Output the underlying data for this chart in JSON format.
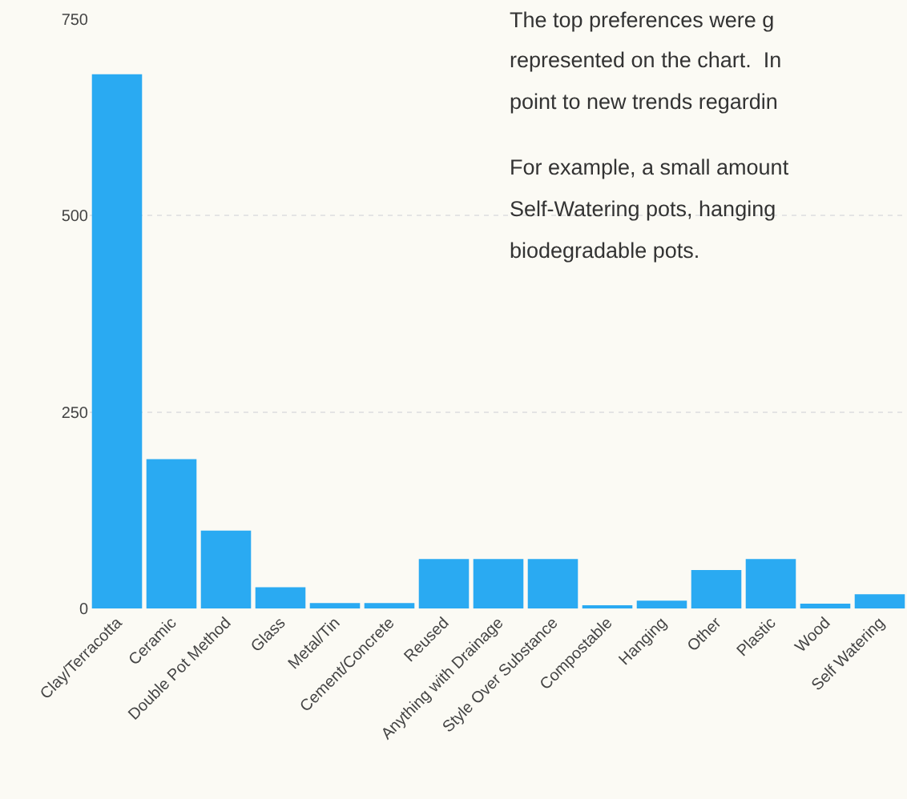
{
  "chart_data": {
    "type": "bar",
    "categories": [
      "Clay/Terracotta",
      "Ceramic",
      "Double Pot Method",
      "Glass",
      "Metal/Tin",
      "Cement/Concrete",
      "Reused",
      "Anything with Drainage",
      "Style Over Substance",
      "Compostable",
      "Hanging",
      "Other",
      "Plastic",
      "Wood",
      "Self Watering"
    ],
    "values": [
      680,
      190,
      99,
      27,
      7,
      7,
      63,
      63,
      63,
      3,
      10,
      49,
      63,
      6,
      18
    ],
    "color": "#2aaaf2",
    "ylim": [
      0,
      750
    ],
    "yticks": [
      0,
      250,
      500,
      750
    ],
    "grid": "y",
    "annotations": [
      "The top preferences were g",
      "represented on the chart.  In",
      "point to new trends regardin",
      "For example, a small amount",
      "Self-Watering pots, hanging",
      "biodegradable pots."
    ]
  }
}
